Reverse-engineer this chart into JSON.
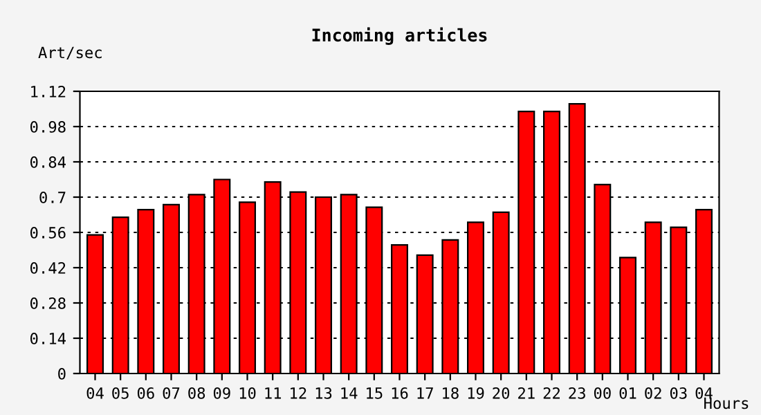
{
  "chart_data": {
    "type": "bar",
    "title": "Incoming articles",
    "xlabel": "Hours",
    "ylabel": "Art/sec",
    "categories": [
      "04",
      "05",
      "06",
      "07",
      "08",
      "09",
      "10",
      "11",
      "12",
      "13",
      "14",
      "15",
      "16",
      "17",
      "18",
      "19",
      "20",
      "21",
      "22",
      "23",
      "00",
      "01",
      "02",
      "03",
      "04"
    ],
    "values": [
      0.55,
      0.62,
      0.65,
      0.67,
      0.71,
      0.77,
      0.68,
      0.76,
      0.72,
      0.7,
      0.71,
      0.66,
      0.51,
      0.47,
      0.53,
      0.6,
      0.64,
      1.04,
      1.04,
      1.07,
      0.75,
      0.46,
      0.6,
      0.58,
      0.65
    ],
    "color": "#ff0000",
    "ylim": [
      0,
      1.12
    ],
    "yticks": [
      0,
      0.14,
      0.28,
      0.42,
      0.56,
      0.7,
      0.84,
      0.98,
      1.12
    ],
    "grid": "y",
    "line_style": "dotted"
  }
}
